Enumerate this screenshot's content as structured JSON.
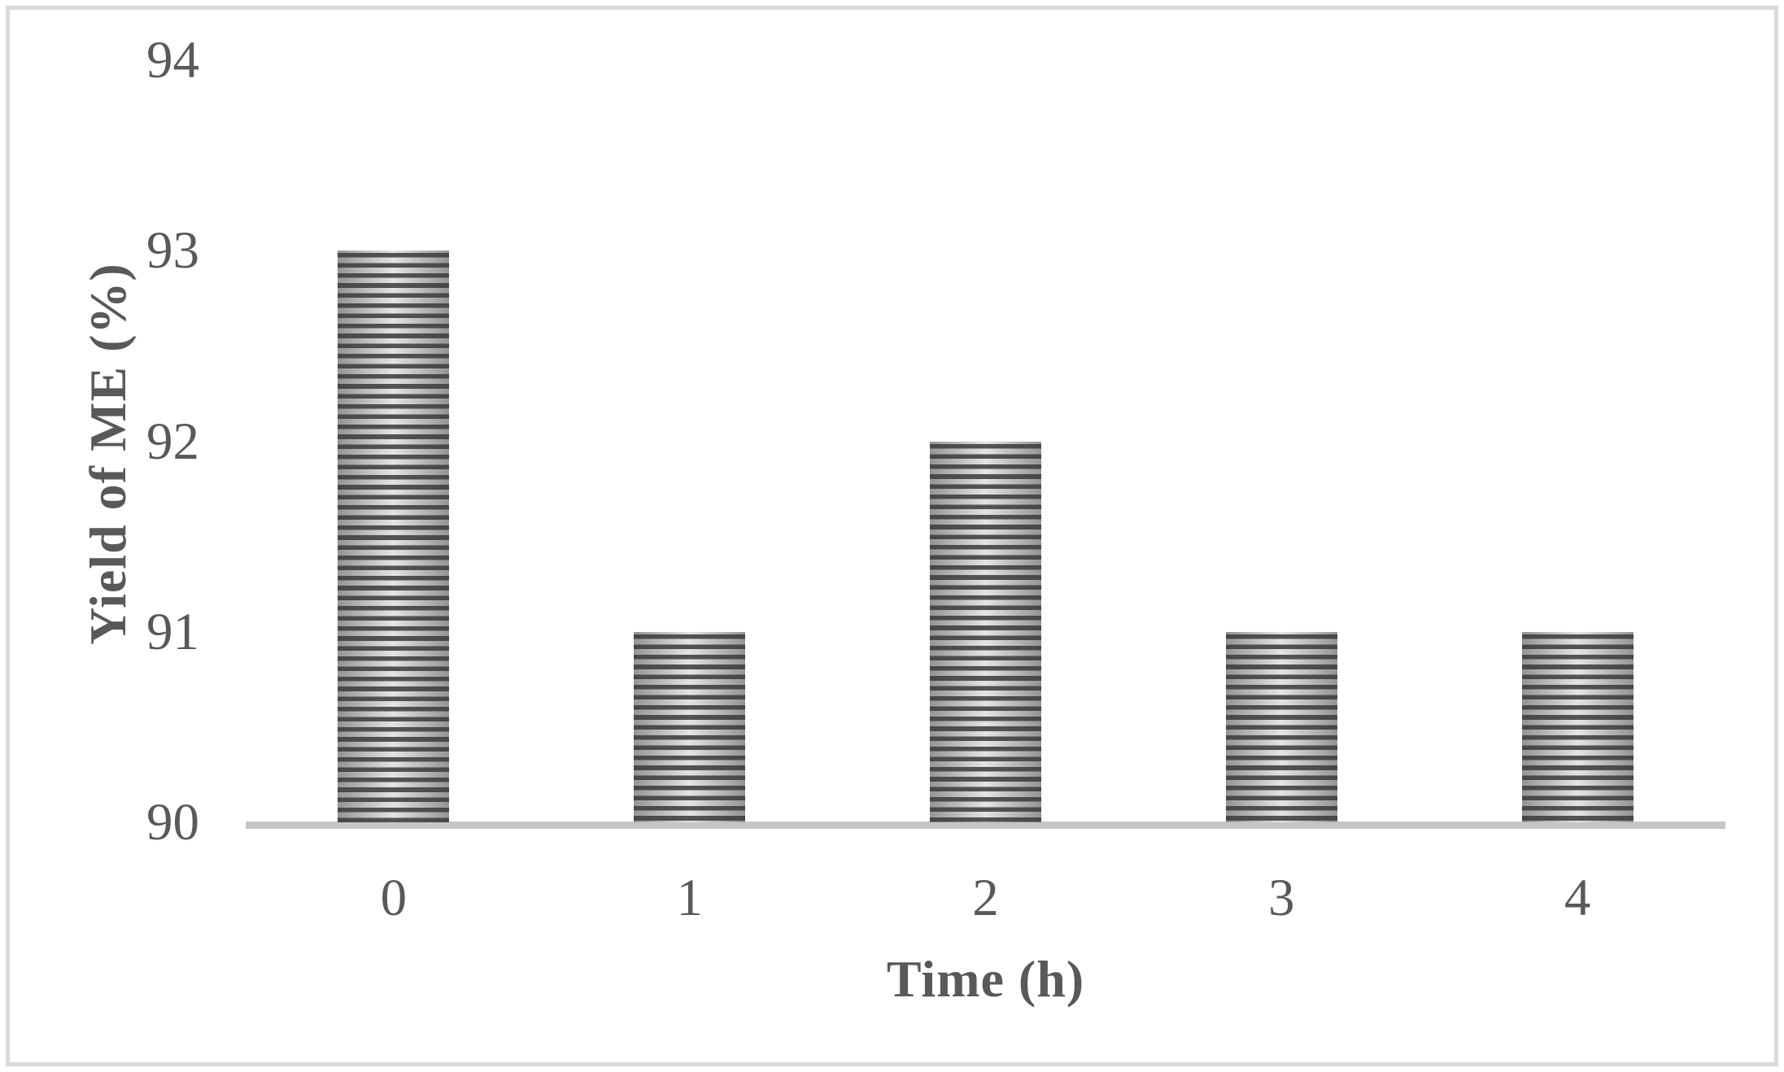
{
  "figure": {
    "background": "#ffffff",
    "border_color": "#d9d9d9"
  },
  "chart_data": {
    "type": "bar",
    "title": "",
    "categories": [
      "0",
      "1",
      "2",
      "3",
      "4"
    ],
    "values": [
      93,
      91,
      92,
      91,
      91
    ],
    "xlabel": "Time (h)",
    "ylabel": "Yield of ME (%)",
    "ylim": [
      90,
      94
    ],
    "yticks": [
      90,
      91,
      92,
      93,
      94
    ],
    "grid": false,
    "legend": "none",
    "text_color": "#595959",
    "axis_line_color": "#c6c6c6",
    "bar_style": {
      "pattern": "horizontal-stripes",
      "stripe_dark": "#3a3a3a",
      "fill_light_center": "#e4e4e4",
      "fill_light_edge": "#949494"
    }
  }
}
